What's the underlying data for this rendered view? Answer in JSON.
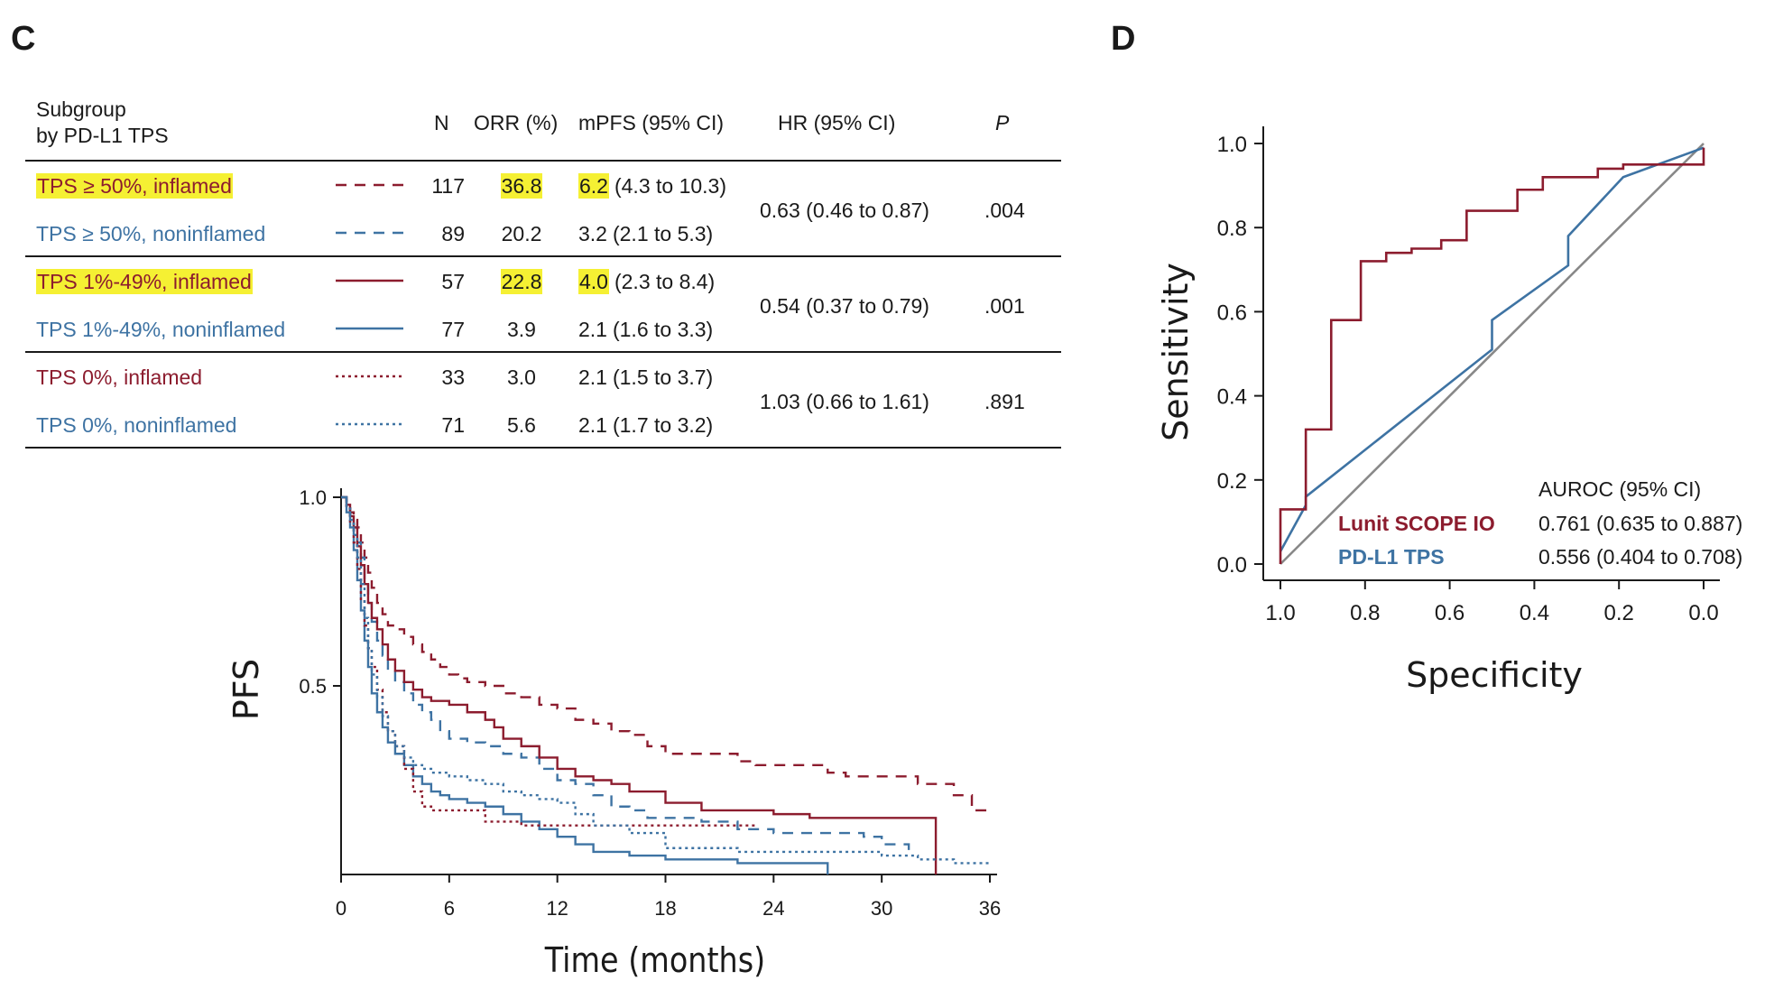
{
  "panels": {
    "left_letter": "C",
    "right_letter": "D"
  },
  "table": {
    "header": {
      "subgroup_line1": "Subgroup",
      "subgroup_line2": "by PD-L1 TPS",
      "n": "N",
      "orr": "ORR (%)",
      "mpfs": "mPFS (95% CI)",
      "hr": "HR (95% CI)",
      "p": "P"
    },
    "rows": [
      {
        "label": "TPS ≥ 50%, inflamed",
        "color": "#8c1c2e",
        "line_style": "dashed",
        "highlight_label": true,
        "n": "117",
        "orr": "36.8",
        "highlight_orr": true,
        "mpfs_median": "6.2",
        "mpfs_ci": "(4.3 to 10.3)",
        "highlight_mpfs": true
      },
      {
        "label": "TPS ≥ 50%, noninflamed",
        "color": "#3e73a3",
        "line_style": "dashed",
        "highlight_label": false,
        "n": "89",
        "orr": "20.2",
        "highlight_orr": false,
        "mpfs_median": "3.2",
        "mpfs_ci": "(2.1 to 5.3)",
        "highlight_mpfs": false
      },
      {
        "label": "TPS 1%-49%, inflamed",
        "color": "#8c1c2e",
        "line_style": "solid",
        "highlight_label": true,
        "n": "57",
        "orr": "22.8",
        "highlight_orr": true,
        "mpfs_median": "4.0",
        "mpfs_ci": "(2.3 to 8.4)",
        "highlight_mpfs": true
      },
      {
        "label": "TPS 1%-49%, noninflamed",
        "color": "#3e73a3",
        "line_style": "solid",
        "highlight_label": false,
        "n": "77",
        "orr": "3.9",
        "highlight_orr": false,
        "mpfs_median": "2.1",
        "mpfs_ci": "(1.6 to 3.3)",
        "highlight_mpfs": false
      },
      {
        "label": "TPS 0%, inflamed",
        "color": "#8c1c2e",
        "line_style": "dotted",
        "highlight_label": false,
        "n": "33",
        "orr": "3.0",
        "highlight_orr": false,
        "mpfs_median": "2.1",
        "mpfs_ci": "(1.5 to 3.7)",
        "highlight_mpfs": false
      },
      {
        "label": "TPS 0%, noninflamed",
        "color": "#3e73a3",
        "line_style": "dotted",
        "highlight_label": false,
        "n": "71",
        "orr": "5.6",
        "highlight_orr": false,
        "mpfs_median": "2.1",
        "mpfs_ci": "(1.7 to 3.2)",
        "highlight_mpfs": false
      }
    ],
    "group_stats": [
      {
        "hr": "0.63 (0.46 to 0.87)",
        "p": ".004"
      },
      {
        "hr": "0.54 (0.37 to 0.79)",
        "p": ".001"
      },
      {
        "hr": "1.03 (0.66 to 1.61)",
        "p": ".891"
      }
    ]
  },
  "chart_data": [
    {
      "type": "line",
      "subtype": "kaplan-meier",
      "title": "",
      "xlabel": "Time (months)",
      "ylabel": "PFS",
      "xlim": [
        0,
        36
      ],
      "ylim": [
        0,
        1.0
      ],
      "xticks": [
        0,
        6,
        12,
        18,
        24,
        30,
        36
      ],
      "yticks": [
        0.5,
        1.0
      ],
      "ytick_labels": [
        "0.5",
        "1.0"
      ],
      "grid": false,
      "series": [
        {
          "name": "TPS ≥ 50%, inflamed",
          "color": "#8c1c2e",
          "dash": "dashed",
          "x": [
            0,
            0.3,
            0.5,
            0.7,
            0.9,
            1.1,
            1.3,
            1.5,
            1.7,
            2.0,
            2.3,
            2.6,
            3.0,
            3.5,
            4.0,
            4.5,
            5.0,
            5.5,
            6.0,
            6.5,
            7.0,
            8.0,
            9.0,
            10.0,
            11.0,
            12.0,
            13.0,
            14.0,
            15.0,
            16.0,
            17.0,
            18.0,
            20.0,
            22.0,
            23.0,
            24.0,
            26.0,
            27.0,
            28.0,
            30.0,
            32.0,
            33.0,
            34.0,
            35.0,
            36.0
          ],
          "y": [
            1.0,
            0.98,
            0.96,
            0.94,
            0.92,
            0.88,
            0.84,
            0.8,
            0.76,
            0.72,
            0.69,
            0.66,
            0.65,
            0.63,
            0.61,
            0.59,
            0.57,
            0.55,
            0.53,
            0.52,
            0.51,
            0.5,
            0.48,
            0.47,
            0.45,
            0.44,
            0.41,
            0.4,
            0.38,
            0.37,
            0.34,
            0.32,
            0.32,
            0.3,
            0.29,
            0.29,
            0.29,
            0.27,
            0.26,
            0.26,
            0.24,
            0.24,
            0.21,
            0.17,
            0.17
          ]
        },
        {
          "name": "TPS ≥ 50%, noninflamed",
          "color": "#3e73a3",
          "dash": "dashed",
          "x": [
            0,
            0.3,
            0.5,
            0.7,
            0.9,
            1.1,
            1.3,
            1.5,
            1.7,
            2.0,
            2.3,
            2.6,
            3.0,
            3.5,
            4.0,
            4.5,
            5.0,
            5.5,
            6.0,
            7.0,
            8.0,
            9.0,
            10.0,
            11.0,
            12.0,
            13.0,
            14.0,
            15.0,
            16.0,
            17.0,
            18.0,
            19.0,
            20.0,
            22.0,
            24.0,
            26.0,
            28.0,
            29.0,
            30.0,
            31.0,
            31.5
          ],
          "y": [
            1.0,
            0.97,
            0.95,
            0.92,
            0.88,
            0.84,
            0.78,
            0.72,
            0.67,
            0.62,
            0.58,
            0.54,
            0.51,
            0.48,
            0.45,
            0.43,
            0.41,
            0.38,
            0.36,
            0.35,
            0.34,
            0.32,
            0.31,
            0.28,
            0.25,
            0.24,
            0.21,
            0.18,
            0.17,
            0.15,
            0.15,
            0.15,
            0.14,
            0.12,
            0.11,
            0.11,
            0.11,
            0.1,
            0.08,
            0.08,
            0.05
          ]
        },
        {
          "name": "TPS 1%-49%, inflamed",
          "color": "#8c1c2e",
          "dash": "solid",
          "x": [
            0,
            0.3,
            0.5,
            0.7,
            0.9,
            1.1,
            1.3,
            1.5,
            1.7,
            2.0,
            2.3,
            2.6,
            3.0,
            3.5,
            4.0,
            4.5,
            5.0,
            6.0,
            7.0,
            8.0,
            8.5,
            9.0,
            10.0,
            11.0,
            12.0,
            13.0,
            14.0,
            15.0,
            16.0,
            18.0,
            20.0,
            22.0,
            24.0,
            26.0,
            28.0,
            30.0,
            31.0,
            33.0
          ],
          "y": [
            1.0,
            0.98,
            0.95,
            0.92,
            0.87,
            0.82,
            0.77,
            0.72,
            0.68,
            0.65,
            0.61,
            0.57,
            0.54,
            0.51,
            0.49,
            0.47,
            0.46,
            0.45,
            0.43,
            0.41,
            0.39,
            0.36,
            0.34,
            0.31,
            0.28,
            0.26,
            0.25,
            0.24,
            0.22,
            0.19,
            0.17,
            0.17,
            0.16,
            0.15,
            0.15,
            0.15,
            0.15,
            0.0
          ]
        },
        {
          "name": "TPS 1%-49%, noninflamed",
          "color": "#3e73a3",
          "dash": "solid",
          "x": [
            0,
            0.3,
            0.5,
            0.7,
            0.9,
            1.1,
            1.3,
            1.5,
            1.7,
            2.0,
            2.3,
            2.6,
            3.0,
            3.5,
            4.0,
            4.5,
            5.0,
            5.5,
            6.0,
            7.0,
            8.0,
            9.0,
            10.0,
            11.0,
            12.0,
            13.0,
            14.0,
            16.0,
            18.0,
            20.0,
            22.0,
            24.0,
            26.0,
            27.0
          ],
          "y": [
            1.0,
            0.96,
            0.92,
            0.86,
            0.78,
            0.7,
            0.62,
            0.55,
            0.48,
            0.43,
            0.39,
            0.35,
            0.32,
            0.29,
            0.26,
            0.24,
            0.22,
            0.21,
            0.2,
            0.19,
            0.18,
            0.16,
            0.14,
            0.12,
            0.1,
            0.08,
            0.06,
            0.05,
            0.04,
            0.04,
            0.03,
            0.03,
            0.03,
            0.0
          ]
        },
        {
          "name": "TPS 0%, inflamed",
          "color": "#8c1c2e",
          "dash": "dotted",
          "x": [
            0,
            0.3,
            0.5,
            0.7,
            0.9,
            1.1,
            1.3,
            1.5,
            1.7,
            2.0,
            2.3,
            2.6,
            3.0,
            3.5,
            4.0,
            4.5,
            5.0,
            6.0,
            8.0,
            10.0,
            12.0,
            14.0,
            16.0,
            18.0,
            20.0,
            22.0,
            23.0
          ],
          "y": [
            1.0,
            0.97,
            0.93,
            0.88,
            0.81,
            0.73,
            0.66,
            0.6,
            0.55,
            0.49,
            0.43,
            0.38,
            0.34,
            0.28,
            0.22,
            0.18,
            0.17,
            0.17,
            0.14,
            0.13,
            0.13,
            0.13,
            0.13,
            0.13,
            0.13,
            0.13,
            0.13
          ]
        },
        {
          "name": "TPS 0%, noninflamed",
          "color": "#3e73a3",
          "dash": "dotted",
          "x": [
            0,
            0.3,
            0.5,
            0.7,
            0.9,
            1.1,
            1.3,
            1.5,
            1.7,
            2.0,
            2.3,
            2.6,
            3.0,
            3.5,
            4.0,
            4.5,
            5.0,
            6.0,
            7.0,
            8.0,
            9.0,
            10.0,
            11.0,
            12.0,
            13.0,
            14.0,
            16.0,
            18.0,
            20.0,
            22.0,
            24.0,
            26.0,
            28.0,
            30.0,
            32.0,
            34.0,
            36.0
          ],
          "y": [
            1.0,
            0.97,
            0.94,
            0.9,
            0.84,
            0.77,
            0.68,
            0.6,
            0.53,
            0.47,
            0.42,
            0.38,
            0.34,
            0.31,
            0.29,
            0.28,
            0.27,
            0.26,
            0.25,
            0.24,
            0.22,
            0.21,
            0.2,
            0.19,
            0.16,
            0.13,
            0.11,
            0.07,
            0.07,
            0.06,
            0.06,
            0.06,
            0.06,
            0.05,
            0.04,
            0.03,
            0.03
          ]
        }
      ]
    },
    {
      "type": "line",
      "subtype": "roc",
      "title": "",
      "xlabel": "Specificity",
      "ylabel": "Sensitivity",
      "xlim": [
        1.0,
        0.0
      ],
      "ylim": [
        0.0,
        1.0
      ],
      "xticks": [
        1.0,
        0.8,
        0.6,
        0.4,
        0.2,
        0.0
      ],
      "yticks": [
        0.0,
        0.2,
        0.4,
        0.6,
        0.8,
        1.0
      ],
      "xtick_labels": [
        "1.0",
        "0.8",
        "0.6",
        "0.4",
        "0.2",
        "0.0"
      ],
      "ytick_labels": [
        "0.0",
        "0.2",
        "0.4",
        "0.6",
        "0.8",
        "1.0"
      ],
      "grid": false,
      "legend_title": "AUROC (95% CI)",
      "legend_position": "bottom-right",
      "series": [
        {
          "name": "Lunit SCOPE IO",
          "auroc": "0.761 (0.635 to 0.887)",
          "color": "#8c1c2e",
          "x": [
            1.0,
            1.0,
            0.94,
            0.94,
            0.88,
            0.88,
            0.81,
            0.81,
            0.75,
            0.75,
            0.69,
            0.69,
            0.62,
            0.62,
            0.56,
            0.56,
            0.44,
            0.44,
            0.38,
            0.38,
            0.25,
            0.25,
            0.19,
            0.19,
            0.12,
            0.12,
            0.0,
            0.0
          ],
          "y": [
            0.0,
            0.13,
            0.13,
            0.32,
            0.32,
            0.58,
            0.58,
            0.72,
            0.72,
            0.74,
            0.74,
            0.75,
            0.75,
            0.77,
            0.77,
            0.84,
            0.84,
            0.89,
            0.89,
            0.92,
            0.92,
            0.94,
            0.94,
            0.95,
            0.95,
            0.95,
            0.95,
            0.99
          ]
        },
        {
          "name": "PD-L1 TPS",
          "auroc": "0.556 (0.404 to 0.708)",
          "color": "#3e73a3",
          "x": [
            1.0,
            0.94,
            0.94,
            0.5,
            0.5,
            0.32,
            0.32,
            0.19,
            0.0
          ],
          "y": [
            0.03,
            0.14,
            0.16,
            0.51,
            0.58,
            0.71,
            0.78,
            0.92,
            0.99
          ]
        },
        {
          "name": "",
          "color": "#888888",
          "x": [
            1.0,
            0.0
          ],
          "y": [
            0.0,
            1.0
          ]
        }
      ]
    }
  ]
}
